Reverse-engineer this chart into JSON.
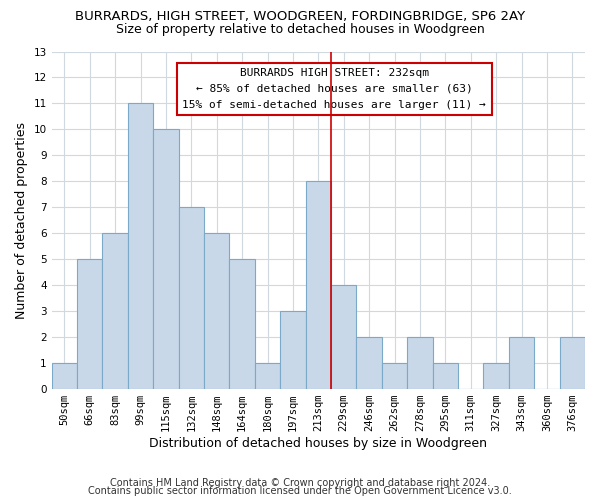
{
  "title": "BURRARDS, HIGH STREET, WOODGREEN, FORDINGBRIDGE, SP6 2AY",
  "subtitle": "Size of property relative to detached houses in Woodgreen",
  "xlabel": "Distribution of detached houses by size in Woodgreen",
  "ylabel": "Number of detached properties",
  "bin_labels": [
    "50sqm",
    "66sqm",
    "83sqm",
    "99sqm",
    "115sqm",
    "132sqm",
    "148sqm",
    "164sqm",
    "180sqm",
    "197sqm",
    "213sqm",
    "229sqm",
    "246sqm",
    "262sqm",
    "278sqm",
    "295sqm",
    "311sqm",
    "327sqm",
    "343sqm",
    "360sqm",
    "376sqm"
  ],
  "values": [
    1,
    5,
    6,
    11,
    10,
    7,
    6,
    5,
    1,
    3,
    8,
    4,
    2,
    1,
    2,
    1,
    0,
    1,
    2,
    0,
    2
  ],
  "bar_color": "#c8d8e8",
  "bar_edge_color": "#7aaac8",
  "vline_x_index": 11,
  "vline_color": "#cc0000",
  "annotation_title": "BURRARDS HIGH STREET: 232sqm",
  "annotation_line1": "← 85% of detached houses are smaller (63)",
  "annotation_line2": "15% of semi-detached houses are larger (11) →",
  "annotation_box_color": "#ffffff",
  "annotation_box_edge_color": "#cc0000",
  "ylim": [
    0,
    13
  ],
  "footer1": "Contains HM Land Registry data © Crown copyright and database right 2024.",
  "footer2": "Contains public sector information licensed under the Open Government Licence v3.0.",
  "background_color": "#ffffff",
  "grid_color": "#d0d8e0",
  "title_fontsize": 9.5,
  "subtitle_fontsize": 9,
  "axis_label_fontsize": 9,
  "tick_fontsize": 7.5,
  "annotation_fontsize": 8,
  "footer_fontsize": 7
}
